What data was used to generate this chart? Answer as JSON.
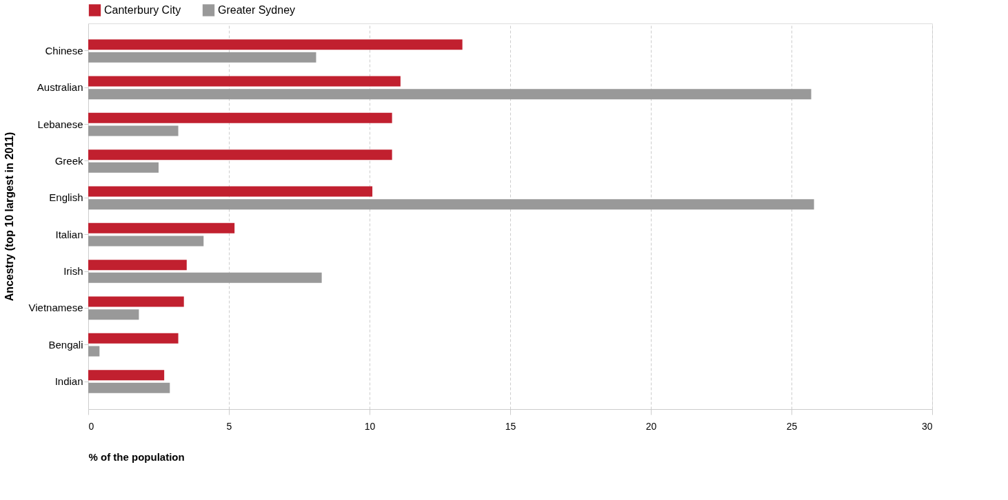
{
  "chart_data": {
    "type": "bar",
    "orientation": "horizontal",
    "xlabel": "% of the population",
    "ylabel": "Ancestry (top 10 largest in 2011)",
    "categories": [
      "Chinese",
      "Australian",
      "Lebanese",
      "Greek",
      "English",
      "Italian",
      "Irish",
      "Vietnamese",
      "Bengali",
      "Indian"
    ],
    "series": [
      {
        "name": "Canterbury City",
        "color": "#c1202f",
        "values": [
          13.3,
          11.1,
          10.8,
          10.8,
          10.1,
          5.2,
          3.5,
          3.4,
          3.2,
          2.7
        ]
      },
      {
        "name": "Greater Sydney",
        "color": "#999999",
        "values": [
          8.1,
          25.7,
          3.2,
          2.5,
          25.8,
          4.1,
          8.3,
          1.8,
          0.4,
          2.9
        ]
      }
    ],
    "xlim": [
      0,
      30
    ],
    "xticks": [
      0,
      5,
      10,
      15,
      20,
      25,
      30
    ],
    "grid": "x",
    "legend": "top left"
  }
}
